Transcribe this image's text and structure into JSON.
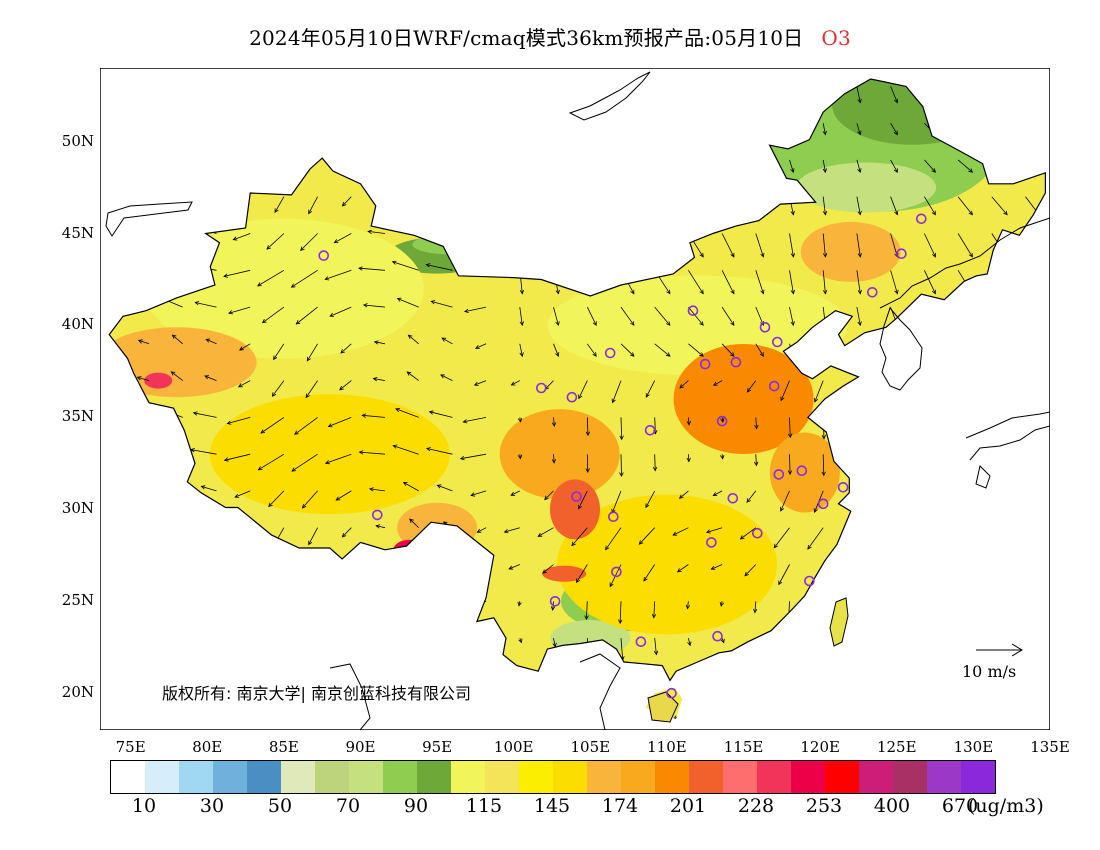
{
  "title": {
    "main": "2024年05月10日WRF/cmaq模式36km预报产品:05月10日",
    "species": "O3"
  },
  "axes": {
    "lat_labels": [
      "50N",
      "45N",
      "40N",
      "35N",
      "30N",
      "25N",
      "20N"
    ],
    "lon_labels": [
      "75E",
      "80E",
      "85E",
      "90E",
      "95E",
      "100E",
      "105E",
      "110E",
      "115E",
      "120E",
      "125E",
      "130E",
      "135E"
    ],
    "lat_range": [
      18,
      54
    ],
    "lon_range": [
      73,
      135
    ]
  },
  "copyright": "版权所有: 南京大学| 南京创蓝科技有限公司",
  "vector_reference": "10 m/s",
  "colorbar": {
    "colors": [
      "#ffffff",
      "#d5eefa",
      "#a0d8f2",
      "#6fb0dc",
      "#4a8fc3",
      "#dfe9b9",
      "#bcd57c",
      "#c5e07e",
      "#8fcd50",
      "#6ea838",
      "#f2f55a",
      "#f4e45a",
      "#fcee00",
      "#fbdd00",
      "#f9b43c",
      "#f8a91e",
      "#f98a00",
      "#f0612c",
      "#ff6e6e",
      "#f2345a",
      "#ec0048",
      "#ff0000",
      "#cc1e78",
      "#a83064",
      "#9b38c8",
      "#8c28dc"
    ],
    "tick_labels": [
      "10",
      "30",
      "50",
      "70",
      "90",
      "115",
      "145",
      "174",
      "201",
      "228",
      "253",
      "400",
      "670"
    ],
    "unit": "(ug/m3)"
  },
  "stations": [
    {
      "lon": 87.6,
      "lat": 43.8
    },
    {
      "lon": 126.6,
      "lat": 45.8
    },
    {
      "lon": 125.3,
      "lat": 43.9
    },
    {
      "lon": 123.4,
      "lat": 41.8
    },
    {
      "lon": 111.7,
      "lat": 40.8
    },
    {
      "lon": 116.4,
      "lat": 39.9
    },
    {
      "lon": 117.2,
      "lat": 39.1
    },
    {
      "lon": 106.3,
      "lat": 38.5
    },
    {
      "lon": 112.5,
      "lat": 37.9
    },
    {
      "lon": 114.5,
      "lat": 38.0
    },
    {
      "lon": 101.8,
      "lat": 36.6
    },
    {
      "lon": 103.8,
      "lat": 36.1
    },
    {
      "lon": 117.0,
      "lat": 36.7
    },
    {
      "lon": 108.9,
      "lat": 34.3
    },
    {
      "lon": 113.6,
      "lat": 34.8
    },
    {
      "lon": 117.3,
      "lat": 31.9
    },
    {
      "lon": 118.8,
      "lat": 32.1
    },
    {
      "lon": 121.5,
      "lat": 31.2
    },
    {
      "lon": 120.2,
      "lat": 30.3
    },
    {
      "lon": 114.3,
      "lat": 30.6
    },
    {
      "lon": 104.1,
      "lat": 30.7
    },
    {
      "lon": 106.5,
      "lat": 29.6
    },
    {
      "lon": 91.1,
      "lat": 29.7
    },
    {
      "lon": 112.9,
      "lat": 28.2
    },
    {
      "lon": 115.9,
      "lat": 28.7
    },
    {
      "lon": 106.7,
      "lat": 26.6
    },
    {
      "lon": 102.7,
      "lat": 25.0
    },
    {
      "lon": 119.3,
      "lat": 26.1
    },
    {
      "lon": 113.3,
      "lat": 23.1
    },
    {
      "lon": 108.3,
      "lat": 22.8
    },
    {
      "lon": 110.3,
      "lat": 20.0
    }
  ]
}
